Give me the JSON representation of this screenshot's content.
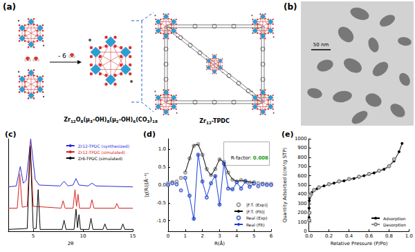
{
  "panels": {
    "a": {
      "label": "(a)",
      "reaction": "- 6",
      "cluster": "Zr12O8(μ3-OH)8(μ2-OH)6(CO3)18",
      "framework": "Zr12-TPDC"
    },
    "b": {
      "label": "(b)",
      "scale_bar": "50 nm"
    }
  },
  "chart_data": [
    {
      "type": "line",
      "title": "(c)",
      "x_label": "2θ",
      "xlim": [
        2.5,
        15
      ],
      "xticks": [
        5,
        10,
        15
      ],
      "ylim": [
        0,
        100
      ],
      "yticks": [],
      "tick_labels": "x",
      "grid": false,
      "legend": "upper right",
      "series": [
        {
          "name": "Zr12-TPDC (synthesized)",
          "color": "#2b2bd8",
          "marker": "none",
          "line_style": "solid",
          "x": [
            2.5,
            3.3,
            3.7,
            4.0,
            4.3,
            4.75,
            5.2,
            5.6,
            7.7,
            8.1,
            8.5,
            9.0,
            9.3,
            9.6,
            10.5,
            10.9,
            11.3,
            15
          ],
          "values": [
            48,
            49,
            70,
            52,
            55,
            100,
            56,
            50,
            49,
            54,
            49,
            50,
            57,
            50,
            49,
            52,
            49,
            48
          ]
        },
        {
          "name": "Zr12-TPDC (simulated)",
          "color": "#d62020",
          "marker": "none",
          "line_style": "solid",
          "x": [
            2.5,
            3.4,
            3.65,
            3.9,
            4.4,
            4.7,
            5.0,
            7.8,
            8.0,
            8.2,
            9.0,
            9.2,
            9.35,
            9.5,
            9.65,
            10.7,
            10.9,
            11.1,
            13.2,
            13.4,
            13.6,
            15
          ],
          "values": [
            25,
            25,
            62,
            26,
            27,
            96,
            27,
            25,
            33,
            25,
            25,
            45,
            27,
            40,
            25,
            25,
            34,
            25,
            25,
            30,
            25,
            25
          ]
        },
        {
          "name": "Zr6-TPDC (simulated)",
          "color": "#000000",
          "marker": "none",
          "line_style": "solid",
          "x": [
            2.5,
            4.4,
            4.7,
            5.0,
            5.3,
            5.5,
            5.7,
            7.9,
            8.1,
            8.3,
            9.1,
            9.3,
            9.45,
            9.6,
            9.75,
            10.6,
            10.8,
            11.0,
            12.0,
            12.2,
            12.4,
            13.8,
            14.0,
            14.2,
            15
          ],
          "values": [
            2,
            3,
            92,
            3,
            3,
            45,
            2,
            2,
            12,
            2,
            2,
            24,
            4,
            18,
            2,
            2,
            14,
            2,
            2,
            8,
            2,
            2,
            8,
            2,
            2
          ]
        }
      ]
    },
    {
      "type": "line",
      "title": "(d)",
      "x_label": "R(Å)",
      "y_label": "|χ(R)|(Å⁻³)",
      "xlim": [
        0,
        6
      ],
      "xticks": [
        0,
        1,
        2,
        3,
        4,
        5,
        6
      ],
      "ylim": [
        -1.3,
        1.3
      ],
      "yticks": [
        {
          "value": -1,
          "label": "-1.0"
        },
        -0.5,
        {
          "value": 0,
          "label": "0.0"
        },
        0.5,
        {
          "value": 1,
          "label": "1.0"
        }
      ],
      "grid": false,
      "legend": "lower right",
      "annotation": "R-factor: 0.008",
      "series": [
        {
          "name": "|F.T. (Exp)|",
          "type": "scatter",
          "color": "#888888",
          "marker": "open_circle",
          "x": [
            0,
            0.25,
            0.5,
            0.75,
            1.0,
            1.25,
            1.5,
            1.75,
            2.0,
            2.25,
            2.5,
            2.75,
            3.0,
            3.25,
            3.5,
            3.75,
            4.0,
            4.25,
            4.5,
            4.75,
            5.0,
            5.25,
            5.5,
            5.75,
            6.0
          ],
          "values": [
            0.05,
            0.08,
            0.1,
            0.2,
            0.35,
            0.75,
            1.1,
            1.15,
            0.85,
            0.45,
            0.28,
            0.45,
            0.72,
            0.65,
            0.35,
            0.15,
            0.1,
            0.14,
            0.12,
            0.07,
            0.08,
            0.05,
            0.04,
            0.03,
            0.03
          ]
        },
        {
          "name": "|F.T. (Fit)|",
          "type": "line",
          "color": "#000000",
          "marker": "none",
          "line_style": "solid",
          "x": [
            1.0,
            1.25,
            1.5,
            1.75,
            2.0,
            2.25,
            2.5,
            2.75,
            3.0,
            3.25,
            3.5,
            3.75,
            4.0,
            4.25,
            4.5,
            4.75,
            5.0
          ],
          "values": [
            0.36,
            0.74,
            1.12,
            1.14,
            0.86,
            0.44,
            0.27,
            0.46,
            0.73,
            0.64,
            0.34,
            0.16,
            0.1,
            0.13,
            0.11,
            0.08,
            0.07
          ]
        },
        {
          "name": "Real (Exp)",
          "type": "scatter",
          "color": "#3355cc",
          "marker": "open_circle",
          "x": [
            0,
            0.25,
            0.5,
            0.75,
            1.0,
            1.25,
            1.5,
            1.75,
            2.0,
            2.25,
            2.5,
            2.75,
            3.0,
            3.25,
            3.5,
            3.75,
            4.0,
            4.25,
            4.5,
            4.75,
            5.0,
            5.25,
            5.5,
            5.75,
            6.0
          ],
          "values": [
            0.0,
            0.05,
            0.02,
            -0.15,
            0.2,
            -0.3,
            -0.95,
            0.85,
            0.1,
            -0.35,
            0.05,
            0.25,
            -0.55,
            0.6,
            -0.1,
            -0.12,
            0.08,
            -0.1,
            0.1,
            -0.05,
            0.04,
            -0.03,
            0.02,
            0.0,
            0.0
          ]
        },
        {
          "name": "Real (Fit)",
          "type": "line",
          "color": "#1a3fd6",
          "marker": "none",
          "line_style": "solid",
          "x": [
            1.0,
            1.25,
            1.5,
            1.75,
            2.0,
            2.25,
            2.5,
            2.75,
            3.0,
            3.25,
            3.5,
            3.75,
            4.0,
            4.25,
            4.5,
            4.75,
            5.0
          ],
          "values": [
            0.18,
            -0.32,
            -0.98,
            0.88,
            0.08,
            -0.33,
            0.06,
            0.27,
            -0.57,
            0.62,
            -0.08,
            -0.13,
            0.07,
            -0.09,
            0.09,
            -0.04,
            0.03
          ]
        }
      ]
    },
    {
      "type": "line",
      "title": "(e)",
      "x_label": "Relative Pressure (P/Po)",
      "y_label": "Quantity Adsorbed (cm³/g STP)",
      "xlim": [
        0,
        1
      ],
      "xticks": [
        {
          "value": 0,
          "label": "0.0"
        },
        0.2,
        0.4,
        0.6,
        0.8,
        {
          "value": 1,
          "label": "1.0"
        }
      ],
      "ylim": [
        0,
        1000
      ],
      "yticks": [
        0,
        100,
        200,
        300,
        400,
        500,
        600,
        700,
        800,
        900,
        1000
      ],
      "grid": false,
      "legend": "lower right",
      "series": [
        {
          "name": "Adsorption",
          "color": "#000000",
          "marker": "filled_circle",
          "line_style": "solid",
          "x": [
            0.0005,
            0.001,
            0.003,
            0.005,
            0.01,
            0.03,
            0.05,
            0.08,
            0.1,
            0.15,
            0.2,
            0.25,
            0.3,
            0.35,
            0.4,
            0.45,
            0.5,
            0.55,
            0.6,
            0.65,
            0.7,
            0.75,
            0.8,
            0.85,
            0.9,
            0.93
          ],
          "values": [
            150,
            250,
            330,
            360,
            390,
            420,
            440,
            460,
            470,
            490,
            505,
            520,
            535,
            545,
            560,
            570,
            585,
            600,
            615,
            630,
            650,
            670,
            700,
            760,
            860,
            950
          ]
        },
        {
          "name": "Desorption",
          "color": "#888888",
          "marker": "open_circle",
          "line_style": "solid",
          "x": [
            0.85,
            0.8,
            0.7,
            0.6,
            0.5,
            0.4,
            0.3,
            0.2,
            0.1,
            0.05,
            0.02,
            0.01,
            0.005,
            0.003
          ],
          "values": [
            780,
            705,
            655,
            620,
            590,
            565,
            540,
            510,
            475,
            445,
            400,
            385,
            200,
            120
          ]
        }
      ]
    }
  ]
}
